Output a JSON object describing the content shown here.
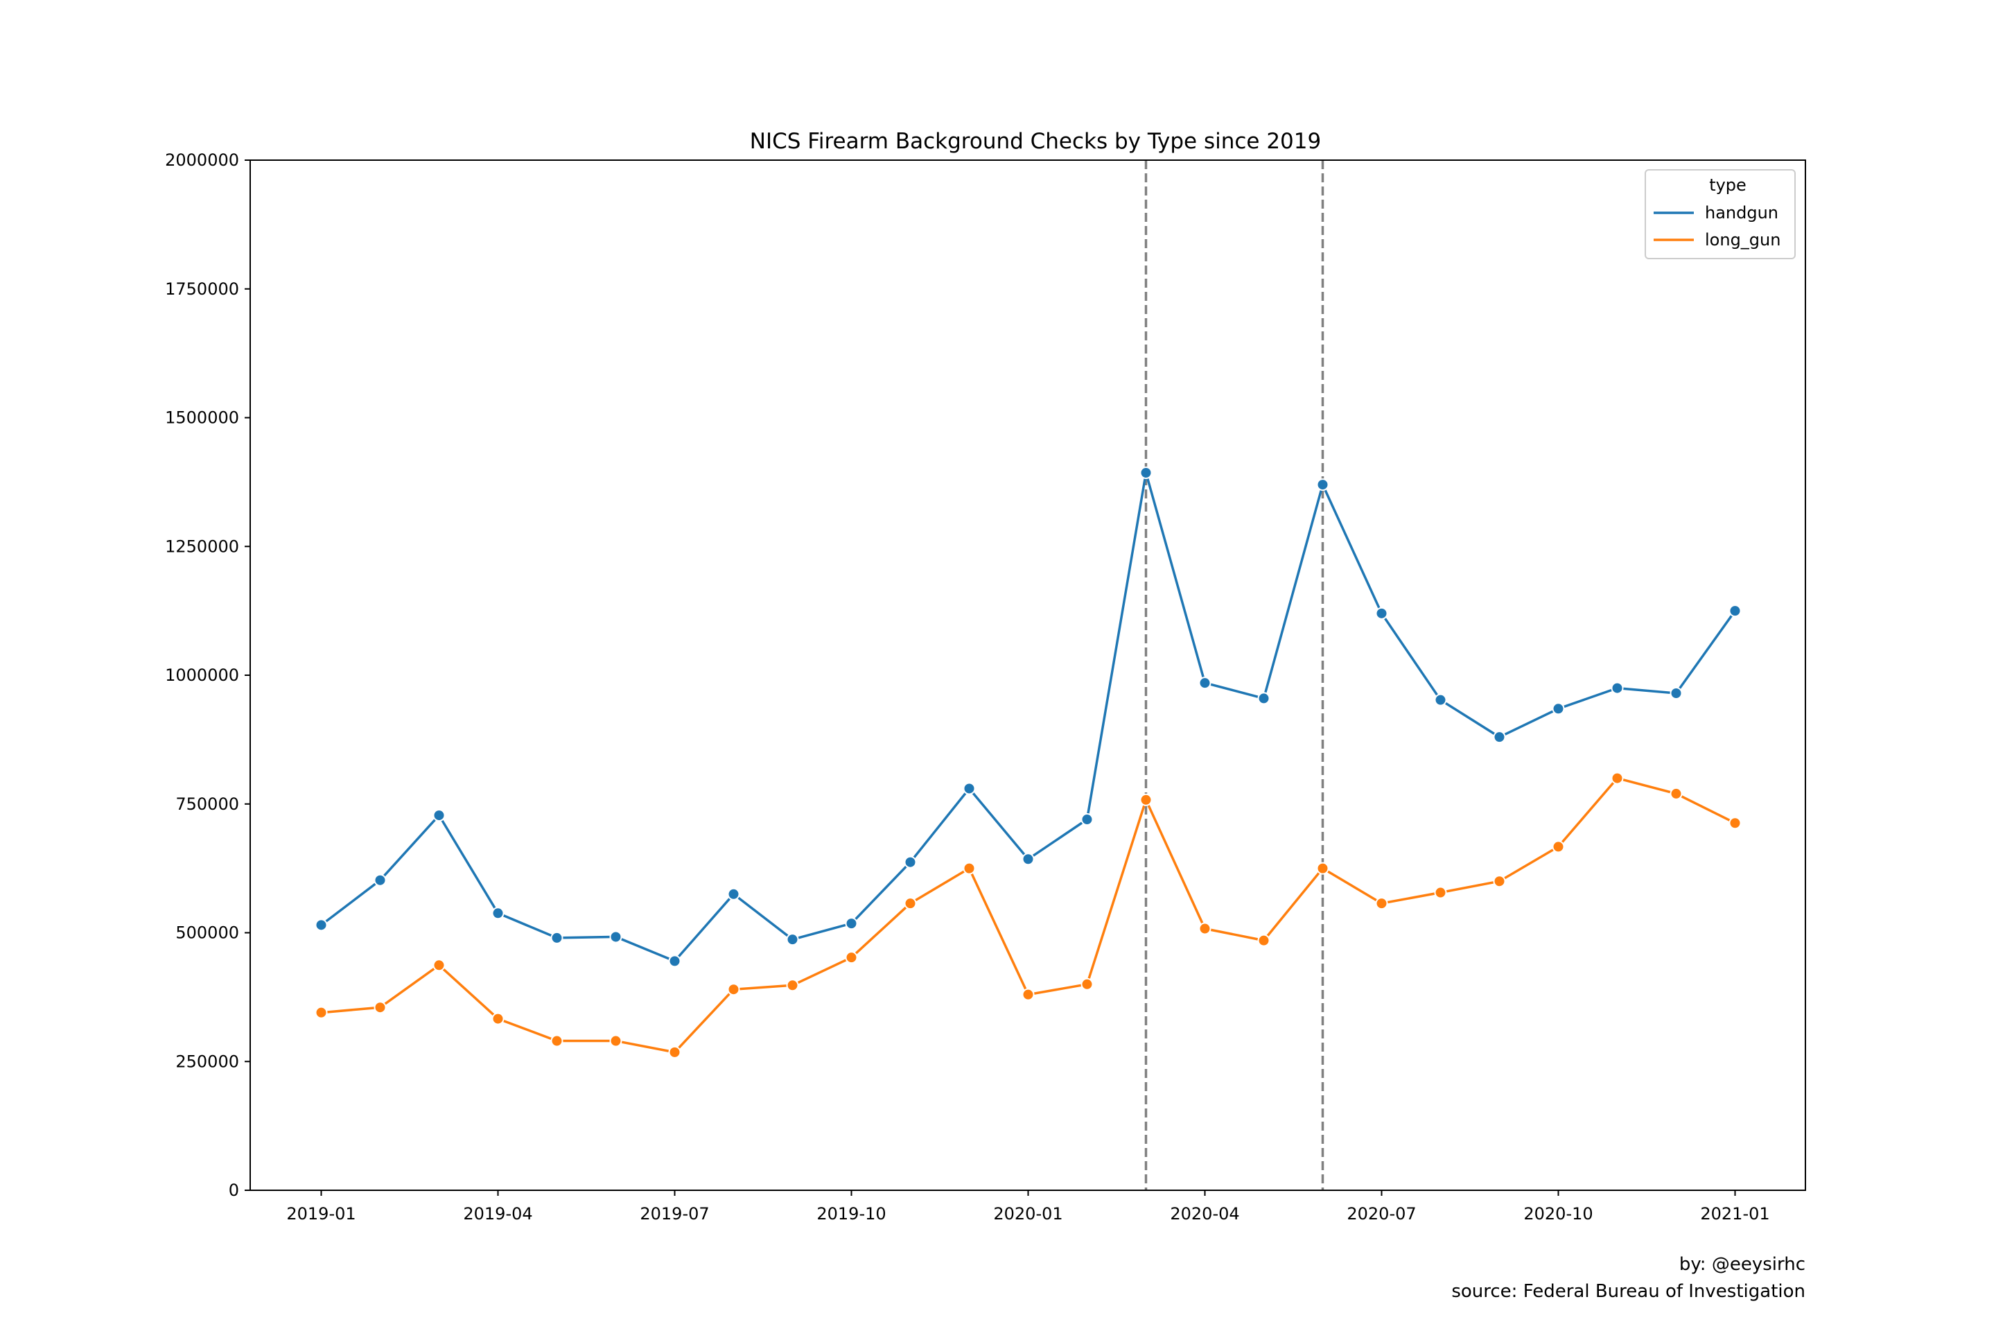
{
  "chart_data": {
    "type": "line",
    "title": "NICS Firearm Background Checks by Type since 2019",
    "xlabel": "",
    "ylabel": "",
    "x": [
      "2019-01",
      "2019-02",
      "2019-03",
      "2019-04",
      "2019-05",
      "2019-06",
      "2019-07",
      "2019-08",
      "2019-09",
      "2019-10",
      "2019-11",
      "2019-12",
      "2020-01",
      "2020-02",
      "2020-03",
      "2020-04",
      "2020-05",
      "2020-06",
      "2020-07",
      "2020-08",
      "2020-09",
      "2020-10",
      "2020-11",
      "2020-12",
      "2021-01"
    ],
    "x_ticks": [
      "2019-01",
      "2019-04",
      "2019-07",
      "2019-10",
      "2020-01",
      "2020-04",
      "2020-07",
      "2020-10",
      "2021-01"
    ],
    "ylim": [
      0,
      2000000
    ],
    "y_ticks": [
      0,
      250000,
      500000,
      750000,
      1000000,
      1250000,
      1500000,
      1750000,
      2000000
    ],
    "y_tick_labels": [
      "0",
      "250000",
      "500000",
      "750000",
      "1000000",
      "1250000",
      "1500000",
      "1750000",
      "2000000"
    ],
    "series": [
      {
        "name": "handgun",
        "color": "#1f77b4",
        "values": [
          515000,
          602000,
          728000,
          538000,
          490000,
          492000,
          445000,
          575000,
          487000,
          518000,
          637000,
          780000,
          643000,
          720000,
          1393000,
          985000,
          955000,
          1370000,
          1120000,
          952000,
          880000,
          935000,
          975000,
          965000,
          1125000
        ]
      },
      {
        "name": "long_gun",
        "color": "#ff7f0e",
        "values": [
          345000,
          355000,
          437000,
          333000,
          290000,
          290000,
          268000,
          390000,
          398000,
          452000,
          557000,
          625000,
          380000,
          400000,
          758000,
          508000,
          485000,
          625000,
          557000,
          578000,
          600000,
          667000,
          800000,
          770000,
          713000
        ]
      }
    ],
    "vlines": [
      {
        "x": "2020-03",
        "color": "#808080",
        "style": "dashed"
      },
      {
        "x": "2020-06",
        "color": "#808080",
        "style": "dashed"
      }
    ],
    "legend": {
      "title": "type",
      "placement": "top-right"
    },
    "grid": false,
    "credits": [
      "by: @eeysirhc",
      "source: Federal Bureau of Investigation"
    ]
  }
}
